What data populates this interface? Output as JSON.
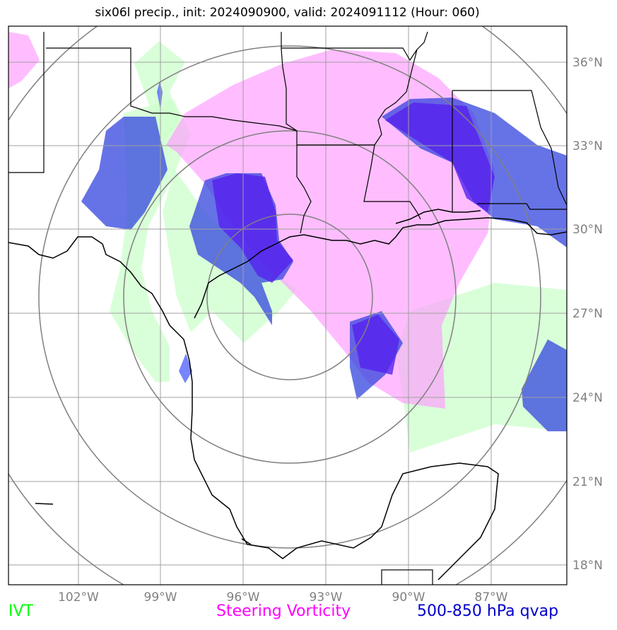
{
  "title": "six06l precip., init: 2024090900, valid: 2024091112 (Hour: 060)",
  "legend": [
    {
      "label": "IVT",
      "color": "#00ff00"
    },
    {
      "label": "Steering Vorticity",
      "color": "#ff00ff"
    },
    {
      "label": "500-850 hPa qvap",
      "color": "#0000cc"
    }
  ],
  "axes": {
    "lon_labels": [
      "102°W",
      "99°W",
      "96°W",
      "93°W",
      "90°W",
      "87°W"
    ],
    "lat_labels": [
      "36°N",
      "33°N",
      "30°N",
      "27°N",
      "24°N",
      "21°N",
      "18°N"
    ]
  },
  "layers": {
    "ivt_color": "#ccffcc",
    "vorticity_color": "#ffaaff",
    "qvap_color": "#3344dd",
    "qvap_dark_color": "#5522ee"
  }
}
